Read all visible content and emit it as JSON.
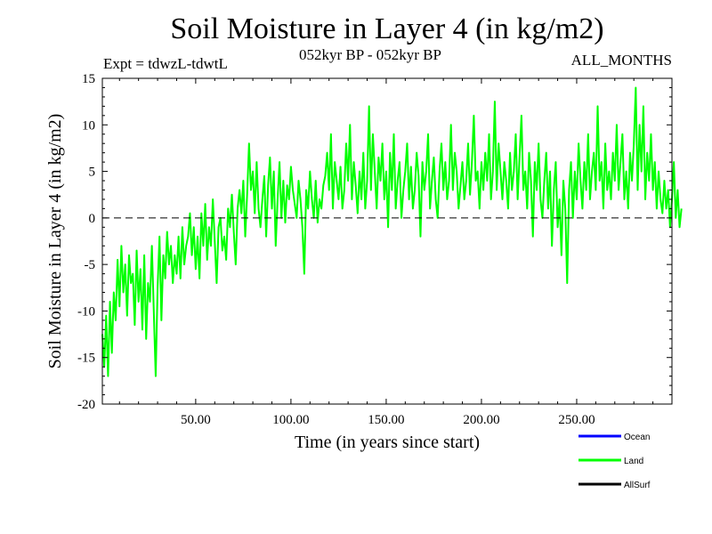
{
  "header": {
    "title": "Soil Moisture in Layer 4 (in kg/m2)",
    "experiment": "Expt = tdwzL-tdwtL",
    "period": "052kyr BP - 052kyr BP",
    "months": "ALL_MONTHS"
  },
  "chart_data": {
    "type": "line",
    "title": "Soil Moisture in Layer 4 (in kg/m2)",
    "xlabel": "Time (in years since start)",
    "ylabel": "Soil Moisture in Layer 4 (in kg/m2)",
    "xlim": [
      1,
      300
    ],
    "ylim": [
      -20,
      15
    ],
    "x_ticks": [
      50,
      100,
      150,
      200,
      250
    ],
    "x_tick_labels": [
      "50.00",
      "100.00",
      "150.00",
      "200.00",
      "250.00"
    ],
    "y_ticks": [
      -20,
      -15,
      -10,
      -5,
      0,
      5,
      10,
      15
    ],
    "y_tick_labels": [
      "-20",
      "-15",
      "-10",
      "-5",
      "0",
      "5",
      "10",
      "15"
    ],
    "reference_line": {
      "y": 0,
      "style": "dashed",
      "color": "#000000"
    },
    "grid": false,
    "legend_position": "bottom-right",
    "legend": [
      {
        "name": "Ocean",
        "label": "Ocean",
        "color": "#0000ff"
      },
      {
        "name": "Land",
        "label": "Land",
        "color": "#00ff00"
      },
      {
        "name": "AllSurf",
        "label": "AllSurf",
        "color": "#000000"
      }
    ],
    "series": [
      {
        "name": "Land",
        "color": "#00ff00",
        "x_start": 1,
        "x_step": 1,
        "values": [
          -12.5,
          -16.0,
          -10.5,
          -17.0,
          -9.0,
          -14.5,
          -8.0,
          -11.0,
          -4.5,
          -9.5,
          -3.0,
          -8.0,
          -5.0,
          -10.5,
          -4.0,
          -7.0,
          -6.0,
          -11.5,
          -3.5,
          -9.0,
          -5.5,
          -12.0,
          -4.0,
          -13.0,
          -7.0,
          -9.0,
          -3.0,
          -10.0,
          -17.0,
          -7.5,
          -2.0,
          -11.0,
          -4.0,
          -6.5,
          -1.5,
          -5.0,
          -3.0,
          -7.0,
          -4.0,
          -6.0,
          -2.0,
          -6.5,
          -1.0,
          -5.0,
          -3.0,
          -2.0,
          0.5,
          -4.0,
          -1.0,
          -5.5,
          -2.0,
          -6.5,
          0.5,
          -3.0,
          1.5,
          -4.5,
          -1.0,
          -3.0,
          2.0,
          -2.5,
          -7.0,
          -1.0,
          0.0,
          -3.5,
          -2.0,
          -4.5,
          1.0,
          -1.0,
          2.5,
          -1.5,
          -5.0,
          1.0,
          3.0,
          0.5,
          4.0,
          -2.0,
          2.5,
          8.0,
          3.0,
          5.0,
          0.5,
          6.0,
          1.0,
          -1.0,
          2.0,
          4.5,
          -2.0,
          3.5,
          6.5,
          1.0,
          5.0,
          -3.0,
          2.0,
          6.0,
          0.0,
          4.0,
          -0.5,
          3.5,
          2.0,
          5.5,
          3.0,
          1.5,
          0.0,
          4.0,
          2.0,
          -1.0,
          -6.0,
          3.0,
          1.0,
          5.0,
          2.0,
          0.0,
          4.0,
          -0.5,
          2.0,
          1.0,
          3.5,
          4.5,
          7.0,
          3.0,
          9.0,
          1.0,
          6.0,
          4.0,
          2.0,
          5.5,
          1.0,
          3.0,
          8.0,
          4.0,
          10.0,
          2.0,
          6.0,
          3.5,
          0.5,
          5.0,
          2.0,
          7.0,
          1.0,
          4.0,
          12.0,
          3.0,
          9.0,
          5.0,
          1.0,
          6.5,
          4.0,
          8.0,
          2.0,
          5.0,
          -1.0,
          7.0,
          3.0,
          9.0,
          1.0,
          4.0,
          6.0,
          0.0,
          3.0,
          5.0,
          8.0,
          2.0,
          5.5,
          1.0,
          3.0,
          7.0,
          4.5,
          -2.0,
          6.0,
          3.0,
          5.0,
          9.0,
          1.0,
          4.0,
          6.5,
          2.0,
          0.0,
          5.0,
          8.0,
          3.0,
          6.0,
          2.0,
          4.0,
          10.0,
          3.0,
          7.0,
          5.0,
          1.0,
          3.5,
          6.0,
          2.0,
          4.0,
          8.0,
          2.5,
          6.0,
          11.0,
          4.0,
          5.0,
          1.0,
          6.0,
          3.0,
          7.0,
          4.0,
          9.0,
          2.0,
          5.0,
          12.5,
          3.0,
          8.0,
          5.0,
          2.0,
          6.0,
          4.0,
          1.0,
          7.0,
          3.0,
          5.0,
          9.0,
          2.0,
          6.5,
          11.0,
          3.0,
          5.0,
          1.0,
          7.0,
          4.0,
          -2.0,
          6.0,
          3.0,
          8.0,
          2.0,
          0.0,
          4.0,
          7.0,
          1.0,
          5.0,
          -3.0,
          3.0,
          6.0,
          -1.0,
          2.0,
          -4.0,
          4.0,
          1.0,
          -7.0,
          3.0,
          6.0,
          0.0,
          5.0,
          2.0,
          8.0,
          4.0,
          1.0,
          6.0,
          3.0,
          9.0,
          2.0,
          5.0,
          7.0,
          3.0,
          12.0,
          4.0,
          6.0,
          1.0,
          8.0,
          3.0,
          5.0,
          2.0,
          7.0,
          4.0,
          10.0,
          3.0,
          6.0,
          9.0,
          2.0,
          5.0,
          1.0,
          7.0,
          4.0,
          8.0,
          14.0,
          3.0,
          10.0,
          5.0,
          12.0,
          2.0,
          7.0,
          4.0,
          9.0,
          3.0,
          6.0,
          1.0,
          5.0,
          2.0,
          0.5,
          4.0,
          1.0,
          3.0,
          -1.0,
          2.0,
          6.0,
          0.0,
          3.0,
          -1.0,
          1.0
        ]
      }
    ]
  }
}
